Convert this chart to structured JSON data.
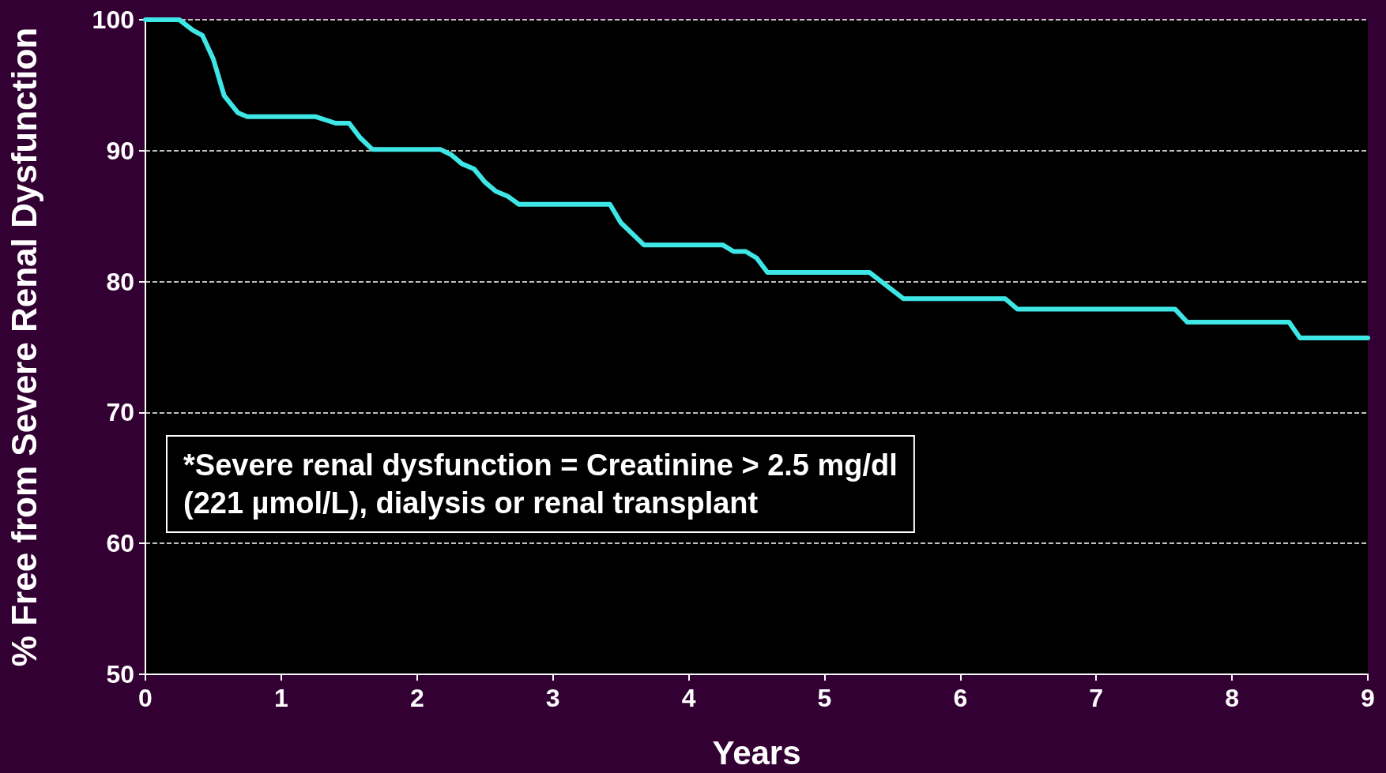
{
  "chart_data": {
    "type": "line",
    "xlabel": "Years",
    "ylabel": "% Free from Severe Renal Dysfunction",
    "annotations": [
      "*Severe renal dysfunction = Creatinine > 2.5 mg/dl\n(221 µmol/L), dialysis or renal transplant"
    ],
    "x": [
      0,
      0.25,
      0.35,
      0.42,
      0.5,
      0.58,
      0.68,
      0.75,
      1.25,
      1.4,
      1.5,
      1.58,
      1.67,
      2.17,
      2.25,
      2.33,
      2.42,
      2.5,
      2.58,
      2.67,
      2.75,
      3.42,
      3.5,
      3.67,
      4.25,
      4.33,
      4.42,
      4.5,
      4.58,
      5.33,
      5.58,
      6.33,
      6.42,
      7.58,
      7.67,
      8.42,
      8.5,
      9
    ],
    "series": [
      {
        "color": "#3ee6e6",
        "values": [
          100,
          100,
          99.2,
          98.8,
          97,
          94.2,
          92.9,
          92.6,
          92.6,
          92.1,
          92.1,
          91,
          90.1,
          90.1,
          89.7,
          89,
          88.6,
          87.6,
          86.9,
          86.5,
          85.9,
          85.9,
          84.5,
          82.8,
          82.8,
          82.3,
          82.3,
          81.8,
          80.7,
          80.7,
          78.7,
          78.7,
          77.9,
          77.9,
          76.9,
          76.9,
          75.7,
          75.7
        ]
      }
    ],
    "xlim": [
      0,
      9
    ],
    "xticks": [
      0,
      1,
      2,
      3,
      4,
      5,
      6,
      7,
      8,
      9
    ],
    "ylim": [
      50,
      100
    ],
    "yticks": [
      50,
      60,
      70,
      80,
      90,
      100
    ],
    "grid": "y",
    "marker": "none",
    "line_style": "solid"
  }
}
